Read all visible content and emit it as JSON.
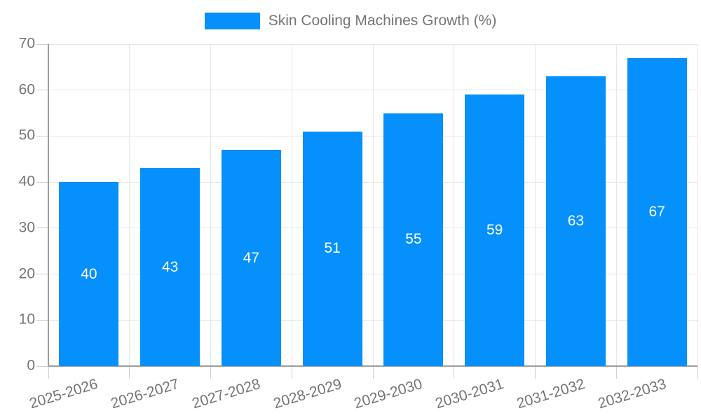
{
  "chart_data": {
    "type": "bar",
    "title": "Skin Cooling Machines Growth (%)",
    "categories": [
      "2025-2026",
      "2026-2027",
      "2027-2028",
      "2028-2029",
      "2029-2030",
      "2030-2031",
      "2031-2032",
      "2032-2033"
    ],
    "values": [
      40,
      43,
      47,
      51,
      55,
      59,
      63,
      67
    ],
    "xlabel": "",
    "ylabel": "",
    "ylim": [
      0,
      70
    ],
    "yticks": [
      0,
      10,
      20,
      30,
      40,
      50,
      60,
      70
    ],
    "grid": true,
    "legend_position": "top-center",
    "colors": {
      "bar": "#0590fb",
      "value_label": "#ffffff",
      "axis_text": "#757575",
      "gridline": "#e6e6e6",
      "axis_line": "#9e9e9e",
      "tick": "#cfcfcf",
      "background": "#ffffff"
    }
  }
}
